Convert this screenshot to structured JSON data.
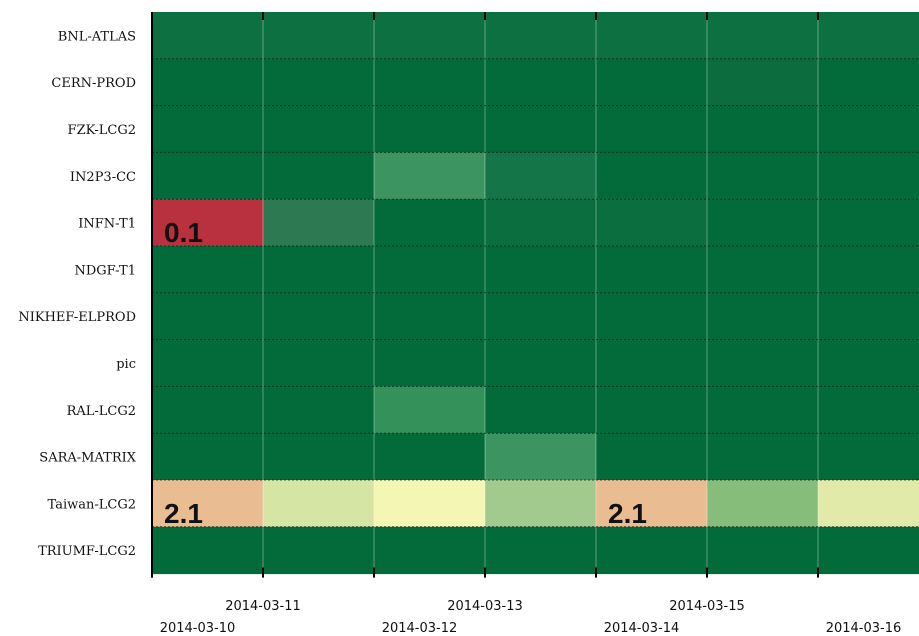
{
  "chart_data": {
    "type": "heatmap",
    "rows": [
      "BNL-ATLAS",
      "CERN-PROD",
      "FZK-LCG2",
      "IN2P3-CC",
      "INFN-T1",
      "NDGF-T1",
      "NIKHEF-ELPROD",
      "pic",
      "RAL-LCG2",
      "SARA-MATRIX",
      "Taiwan-LCG2",
      "TRIUMF-LCG2"
    ],
    "columns": [
      "2014-03-10",
      "2014-03-11",
      "2014-03-12",
      "2014-03-13",
      "2014-03-14",
      "2014-03-15",
      "2014-03-16"
    ],
    "x_tick_labels": [
      "2014-03-10",
      "2014-03-11",
      "2014-03-12",
      "2014-03-13",
      "2014-03-14",
      "2014-03-15",
      "2014-03-16"
    ],
    "cell_colors": [
      [
        "#0c7040",
        "#0c7040",
        "#0c7040",
        "#0c7040",
        "#0c7040",
        "#0c7040",
        "#0c7040"
      ],
      [
        "#036a3a",
        "#036a3a",
        "#036a3a",
        "#036a3a",
        "#036a3a",
        "#0d6c3e",
        "#036a3a"
      ],
      [
        "#036a3a",
        "#036a3a",
        "#036a3a",
        "#036a3a",
        "#036a3a",
        "#036a3a",
        "#036a3a"
      ],
      [
        "#036a3a",
        "#036a3a",
        "#3c9560",
        "#147548",
        "#036a3a",
        "#036a3a",
        "#036a3a"
      ],
      [
        "#b9313f",
        "#2d7a52",
        "#036a3a",
        "#0b6e3e",
        "#0b6e3e",
        "#036a3a",
        "#036a3a"
      ],
      [
        "#036a3a",
        "#036a3a",
        "#036a3a",
        "#036a3a",
        "#036a3a",
        "#036a3a",
        "#036a3a"
      ],
      [
        "#036a3a",
        "#036a3a",
        "#036a3a",
        "#036a3a",
        "#036a3a",
        "#036a3a",
        "#036a3a"
      ],
      [
        "#036a3a",
        "#036a3a",
        "#036a3a",
        "#036a3a",
        "#036a3a",
        "#036a3a",
        "#036a3a"
      ],
      [
        "#036a3a",
        "#036a3a",
        "#339159",
        "#036a3a",
        "#036a3a",
        "#036a3a",
        "#036a3a"
      ],
      [
        "#036a3a",
        "#036a3a",
        "#036a3a",
        "#3c9560",
        "#036a3a",
        "#036a3a",
        "#036a3a"
      ],
      [
        "#e9bd91",
        "#d5e5a3",
        "#f4f6b4",
        "#a2ca8e",
        "#e9bd91",
        "#86bd7a",
        "#e1eaa9"
      ],
      [
        "#036a3a",
        "#036a3a",
        "#036a3a",
        "#036a3a",
        "#036a3a",
        "#036a3a",
        "#036a3a"
      ]
    ],
    "annotations": [
      {
        "row": 4,
        "col": 0,
        "text": "0.1"
      },
      {
        "row": 10,
        "col": 0,
        "text": "2.1"
      },
      {
        "row": 10,
        "col": 4,
        "text": "2.1"
      }
    ],
    "grid": true,
    "title": "",
    "xlabel": "",
    "ylabel": ""
  }
}
